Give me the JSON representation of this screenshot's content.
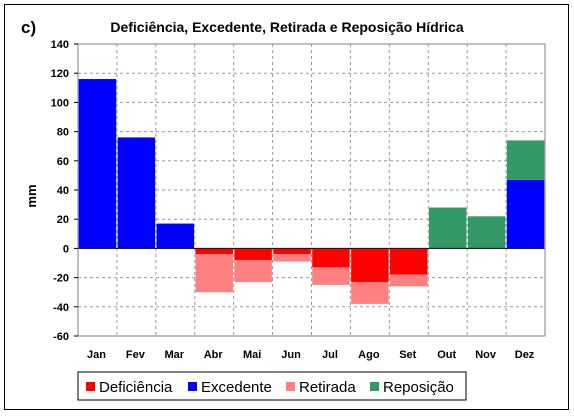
{
  "chart_data": {
    "type": "bar",
    "panel_label": "c)",
    "title": "Deficiência, Excedente, Retirada e Reposição Hídrica",
    "ylabel": "mm",
    "xlabel": "",
    "ylim": [
      -60,
      140
    ],
    "y_ticks": [
      140,
      120,
      100,
      80,
      60,
      40,
      20,
      0,
      -20,
      -40,
      -60
    ],
    "categories": [
      "Jan",
      "Fev",
      "Mar",
      "Abr",
      "Mai",
      "Jun",
      "Jul",
      "Ago",
      "Set",
      "Out",
      "Nov",
      "Dez"
    ],
    "grid": true,
    "legend_position": "bottom",
    "series": [
      {
        "name": "Deficiência",
        "color": "#ff0000",
        "values": [
          0,
          0,
          0,
          -4,
          -8,
          -4,
          -13,
          -23,
          -18,
          0,
          0,
          0
        ]
      },
      {
        "name": "Excedente",
        "color": "#0000ff",
        "values": [
          116,
          76,
          17,
          0,
          0,
          0,
          0,
          0,
          0,
          0,
          0,
          47
        ]
      },
      {
        "name": "Retirada",
        "color": "#ff8080",
        "values": [
          0,
          0,
          0,
          -26,
          -15,
          -5,
          -12,
          -15,
          -8,
          0,
          0,
          0
        ]
      },
      {
        "name": "Reposição",
        "color": "#339966",
        "values": [
          0,
          0,
          0,
          0,
          0,
          0,
          0,
          0,
          0,
          28,
          22,
          27
        ]
      }
    ]
  }
}
